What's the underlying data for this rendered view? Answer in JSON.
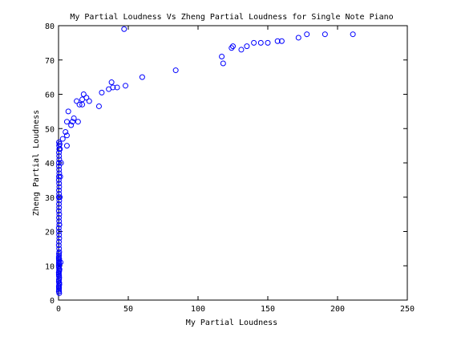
{
  "chart_data": {
    "type": "scatter",
    "title": "My Partial Loudness Vs Zheng Partial Loudness for Single Note Piano",
    "xlabel": "My Partial Loudness",
    "ylabel": "Zheng Partial Loudness",
    "xlim": [
      0,
      250
    ],
    "ylim": [
      0,
      80
    ],
    "xticks": [
      0,
      50,
      100,
      150,
      200,
      250
    ],
    "yticks": [
      0,
      10,
      20,
      30,
      40,
      50,
      60,
      70,
      80
    ],
    "grid": false,
    "legend": "none",
    "marker": "open-circle",
    "marker_color": "#0000ff",
    "series": [
      {
        "x": [
          0.5,
          0.2,
          0.3,
          0.4,
          0.3,
          0.5,
          0.4,
          0.2,
          0.3,
          0.5,
          0.4,
          0.3,
          0.2,
          0.5,
          0.4,
          0.3,
          0.2,
          0.5,
          0.4,
          0.3,
          0.5,
          0.2,
          0.4,
          0.3,
          0.5,
          0.4,
          0.2,
          0.3,
          0.5,
          0.4,
          0.3,
          0.2,
          0.5,
          0.4,
          0.3,
          0.5,
          0.2,
          0.4,
          0.3,
          0.5,
          0.2,
          0.4,
          0.3,
          0.5,
          0.4,
          0.2,
          0.3,
          0.5,
          0.4,
          0.3,
          0.2,
          0.5,
          0.4,
          0.3,
          0.5,
          0.4,
          0.3,
          0.2,
          0.5,
          0.4,
          0.3,
          0.2,
          0.5,
          0.4,
          0.3,
          0.2,
          0.4,
          0.3,
          0.5,
          0.2,
          0.4,
          0.3,
          1.0,
          0.8,
          1.2,
          0.9,
          0.6,
          1.5,
          0.7,
          1.8,
          3,
          6,
          6,
          6,
          5,
          7,
          9,
          10,
          11,
          13,
          14,
          15,
          17,
          17,
          18,
          20,
          22,
          29,
          31,
          36,
          38,
          39,
          42,
          47,
          48,
          60,
          84,
          117,
          118,
          124,
          125,
          131,
          135,
          140,
          145,
          150,
          157,
          160,
          172,
          178,
          191,
          211
        ],
        "y": [
          2,
          2.5,
          3,
          3.5,
          4,
          4.5,
          5,
          5.5,
          6,
          6.5,
          7,
          7.5,
          8,
          8.5,
          9,
          9.5,
          10,
          10.5,
          11,
          11.5,
          12,
          12.5,
          13,
          13.5,
          14,
          15,
          16,
          17,
          18,
          19,
          20,
          21,
          22,
          23,
          24,
          25,
          26,
          27,
          28,
          29,
          30,
          31,
          32,
          33,
          34,
          35,
          36,
          37,
          38,
          39,
          40,
          41,
          42,
          43,
          44,
          45,
          46,
          4,
          5,
          6,
          7,
          8,
          9,
          10,
          11,
          12,
          2.5,
          3.5,
          4.5,
          7.5,
          8.5,
          10.5,
          44,
          45.5,
          36,
          30,
          22,
          11,
          9,
          40,
          47,
          45,
          48,
          52,
          49,
          55,
          51,
          52,
          53,
          58,
          52,
          57,
          57,
          58.5,
          60,
          59,
          58,
          56.5,
          60.5,
          61.5,
          63.5,
          62,
          62,
          79,
          62.5,
          65,
          67,
          71,
          69,
          73.5,
          74,
          73,
          74,
          75,
          75,
          75,
          75.5,
          75.5,
          76.5,
          77.5,
          77.5,
          77.5
        ]
      }
    ]
  }
}
